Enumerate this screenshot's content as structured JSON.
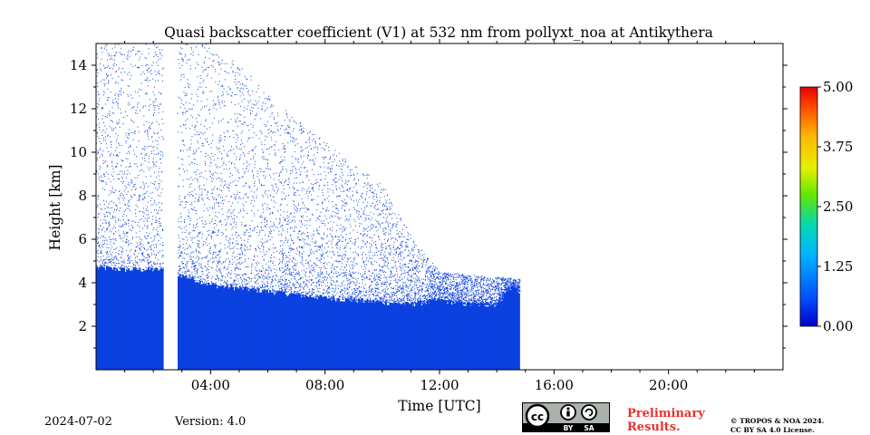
{
  "chart_data": {
    "type": "heatmap",
    "title": "Quasi backscatter coefficient (V1) at 532 nm from pollyxt_noa at Antikythera",
    "xlabel": "Time [UTC]",
    "ylabel": "Height [km]",
    "xlim_hours": [
      0,
      24
    ],
    "ylim_km": [
      0,
      15
    ],
    "x_ticks": [
      {
        "hour": 4,
        "label": "04:00"
      },
      {
        "hour": 8,
        "label": "08:00"
      },
      {
        "hour": 12,
        "label": "12:00"
      },
      {
        "hour": 16,
        "label": "16:00"
      },
      {
        "hour": 20,
        "label": "20:00"
      }
    ],
    "y_ticks": [
      {
        "km": 2,
        "label": "2"
      },
      {
        "km": 4,
        "label": "4"
      },
      {
        "km": 6,
        "label": "6"
      },
      {
        "km": 8,
        "label": "8"
      },
      {
        "km": 10,
        "label": "10"
      },
      {
        "km": 12,
        "label": "12"
      },
      {
        "km": 14,
        "label": "14"
      }
    ],
    "colorbar": {
      "min": 0.0,
      "max": 5.0,
      "ticks": [
        {
          "value": 0.0,
          "label": "0.00"
        },
        {
          "value": 1.25,
          "label": "1.25"
        },
        {
          "value": 2.5,
          "label": "2.50"
        },
        {
          "value": 3.75,
          "label": "3.75"
        },
        {
          "value": 5.0,
          "label": "5.00"
        }
      ]
    },
    "data_start_hour": 0.0,
    "data_end_hour": 14.8,
    "gap_hours": [
      2.35,
      2.85
    ],
    "signal_color": "#0a41e0",
    "dense_layer_top_km": [
      [
        0.0,
        4.7
      ],
      [
        1.0,
        4.6
      ],
      [
        2.35,
        4.6
      ],
      [
        2.85,
        4.4
      ],
      [
        4.0,
        3.9
      ],
      [
        6.0,
        3.6
      ],
      [
        8.0,
        3.3
      ],
      [
        10.0,
        3.1
      ],
      [
        11.0,
        3.0
      ],
      [
        12.0,
        3.2
      ],
      [
        13.0,
        3.0
      ],
      [
        14.0,
        3.0
      ],
      [
        14.5,
        3.8
      ],
      [
        14.8,
        3.6
      ]
    ],
    "sparse_signal_top_km": [
      [
        0.0,
        15.0
      ],
      [
        2.35,
        15.0
      ],
      [
        2.85,
        15.0
      ],
      [
        4.0,
        15.0
      ],
      [
        5.0,
        14.0
      ],
      [
        7.0,
        11.5
      ],
      [
        9.0,
        9.5
      ],
      [
        10.0,
        8.5
      ],
      [
        11.0,
        6.2
      ],
      [
        12.0,
        4.5
      ],
      [
        14.8,
        4.2
      ]
    ]
  },
  "footer": {
    "date": "2024-07-02",
    "version": "Version: 4.0",
    "preliminary_line1": "Preliminary",
    "preliminary_line2": "Results.",
    "copyright_line1": "© TROPOS & NOA 2024.",
    "copyright_line2": "CC BY SA 4.0 License.",
    "license_badge_labels": [
      "BY",
      "SA"
    ],
    "license_badge_icon": "cc-by-sa-icon"
  }
}
